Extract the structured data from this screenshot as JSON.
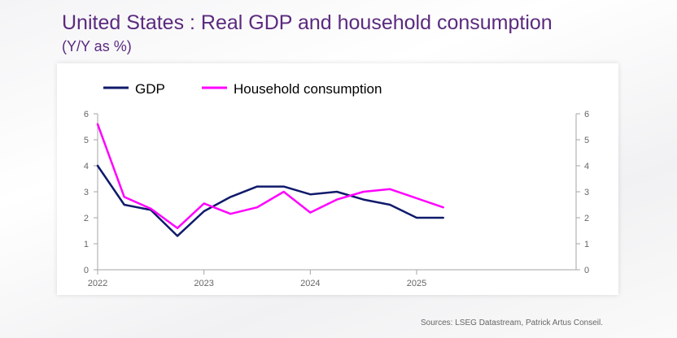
{
  "header": {
    "title": "United States : Real GDP and household consumption",
    "subtitle": "(Y/Y as %)"
  },
  "footer": {
    "source": "Sources: LSEG Datastream, Patrick Artus Conseil."
  },
  "chart_data": {
    "type": "line",
    "title": "United States : Real GDP and household consumption",
    "subtitle": "(Y/Y as %)",
    "x_tick_labels": [
      "2022",
      "2023",
      "2024",
      "2025"
    ],
    "x_range": [
      2022.0,
      2026.5
    ],
    "ylim": [
      0,
      6
    ],
    "y_ticks": [
      "0",
      "1",
      "2",
      "3",
      "4",
      "5",
      "6"
    ],
    "y2_ticks": [
      "0",
      "1",
      "2",
      "3",
      "4",
      "5",
      "6"
    ],
    "legend_position": "top-left",
    "grid": false,
    "series": [
      {
        "name": "GDP",
        "color": "#0f1a6b",
        "x": [
          2022.0,
          2022.25,
          2022.5,
          2022.75,
          2023.0,
          2023.25,
          2023.5,
          2023.75,
          2024.0,
          2024.25,
          2024.5,
          2024.75,
          2025.0,
          2025.25
        ],
        "values": [
          4.0,
          2.5,
          2.3,
          1.3,
          2.25,
          2.8,
          3.2,
          3.2,
          2.9,
          3.0,
          2.7,
          2.5,
          2.0,
          2.0
        ]
      },
      {
        "name": "Household consumption",
        "color": "#ff00ff",
        "x": [
          2022.0,
          2022.25,
          2022.5,
          2022.75,
          2023.0,
          2023.25,
          2023.5,
          2023.75,
          2024.0,
          2024.25,
          2024.5,
          2024.75,
          2025.0,
          2025.25
        ],
        "values": [
          5.6,
          2.8,
          2.35,
          1.6,
          2.55,
          2.15,
          2.4,
          3.0,
          2.2,
          2.7,
          3.0,
          3.1,
          2.75,
          2.4
        ]
      }
    ]
  }
}
